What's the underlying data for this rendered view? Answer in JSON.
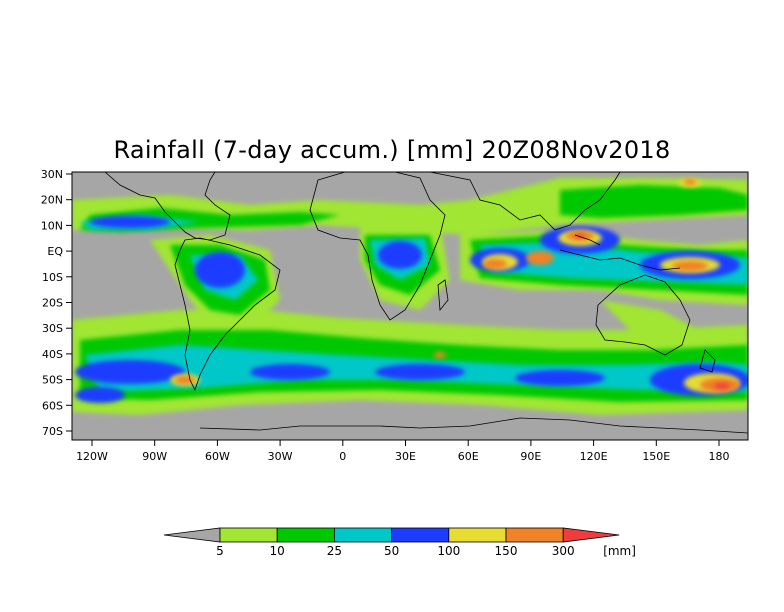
{
  "title": "Rainfall (7-day accum.) [mm] 20Z08Nov2018",
  "map": {
    "land_color": "#a6a6a6",
    "ocean_color": "#a6a6a6",
    "lat_ticks": [
      "30N",
      "20N",
      "10N",
      "EQ",
      "10S",
      "20S",
      "30S",
      "40S",
      "50S",
      "60S",
      "70S"
    ],
    "lon_ticks": [
      "120W",
      "90W",
      "60W",
      "30W",
      "0",
      "30E",
      "60E",
      "90E",
      "120E",
      "150E",
      "180"
    ]
  },
  "colorbar": {
    "under_color": "#a6a6a6",
    "over_color": "#f03c3c",
    "colors": [
      "#a0e632",
      "#00c800",
      "#00c8c8",
      "#1e3cff",
      "#e6dc32",
      "#f08228"
    ],
    "labels": [
      "5",
      "10",
      "25",
      "50",
      "100",
      "150",
      "300"
    ],
    "unit": "[mm]"
  }
}
